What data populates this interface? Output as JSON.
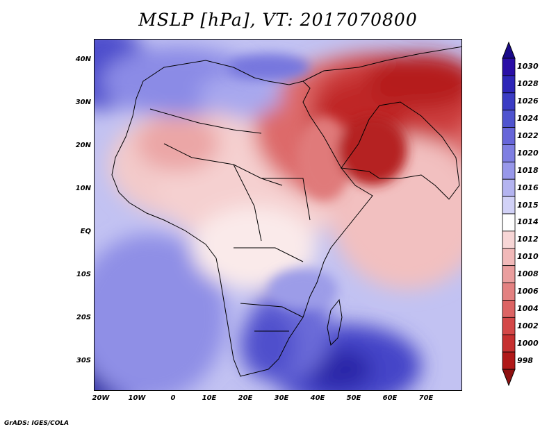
{
  "title": "MSLP [hPa], VT: 2017070800",
  "footer": "GrADS: IGES/COLA",
  "y_axis_labels": [
    "40N",
    "30N",
    "20N",
    "10N",
    "EQ",
    "10S",
    "20S",
    "30S"
  ],
  "x_axis_labels": [
    "20W",
    "10W",
    "0",
    "10E",
    "20E",
    "30E",
    "40E",
    "50E",
    "60E",
    "70E"
  ],
  "colorbar": {
    "labels": [
      "1030",
      "1028",
      "1026",
      "1024",
      "1022",
      "1020",
      "1018",
      "1016",
      "1015",
      "1014",
      "1012",
      "1010",
      "1008",
      "1006",
      "1004",
      "1002",
      "1000",
      "998"
    ],
    "colors": [
      "#2a0ea6",
      "#2e26b8",
      "#3b3cc4",
      "#4f54cf",
      "#6766d9",
      "#7f7fe2",
      "#9898ea",
      "#b4b4f0",
      "#d2d2f7",
      "#ffffff",
      "#f7d6d6",
      "#f1b9b9",
      "#ea9e9e",
      "#e38181",
      "#dc6464",
      "#d44848",
      "#c63030",
      "#b01818"
    ],
    "top_color": "#1a0a8a",
    "bottom_color": "#8e1010"
  }
}
